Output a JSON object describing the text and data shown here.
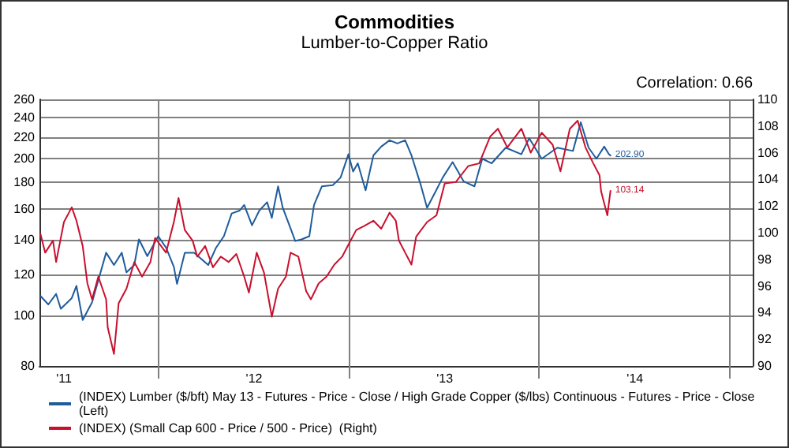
{
  "chart_data": {
    "type": "line",
    "title": "Commodities",
    "subtitle": "Lumber-to-Copper Ratio",
    "annotations": [
      "Correlation: 0.66"
    ],
    "xlim": [
      "2010-11-15",
      "2014-08-15"
    ],
    "xticks": [
      {
        "value": "2011-01-01",
        "label": "'11"
      },
      {
        "value": "2011-07-01",
        "label": null
      },
      {
        "value": "2012-01-01",
        "label": "'12"
      },
      {
        "value": "2012-07-01",
        "label": null
      },
      {
        "value": "2013-01-01",
        "label": "'13"
      },
      {
        "value": "2013-07-01",
        "label": null
      },
      {
        "value": "2014-01-01",
        "label": "'14"
      },
      {
        "value": "2014-07-01",
        "label": null
      }
    ],
    "log": "y",
    "ylim": [
      80,
      260
    ],
    "yticks": [
      80,
      100,
      120,
      140,
      160,
      180,
      200,
      220,
      240,
      260
    ],
    "y2lim": [
      90,
      110
    ],
    "y2ticks": [
      90,
      92,
      94,
      96,
      98,
      100,
      102,
      104,
      106,
      108,
      110
    ],
    "grid": true,
    "legend": "bottom",
    "marker": "none",
    "line_style": "solid",
    "series": [
      {
        "name": "(INDEX) Lumber ($/bft) May 13 - Futures - Price - Close / High Grade Copper ($/lbs) Continuous - Futures - Price - Close  (Left)",
        "color": "#1f5c9c",
        "x": [
          "2010-11-17",
          "2010-12-02",
          "2010-12-17",
          "2010-12-26",
          "2011-01-16",
          "2011-01-25",
          "2011-02-06",
          "2011-02-24",
          "2011-03-23",
          "2011-04-07",
          "2011-04-22",
          "2011-05-01",
          "2011-05-16",
          "2011-05-25",
          "2011-06-10",
          "2011-07-01",
          "2011-07-16",
          "2011-07-31",
          "2011-08-06",
          "2011-08-21",
          "2011-09-08",
          "2011-10-05",
          "2011-10-20",
          "2011-11-04",
          "2011-11-19",
          "2011-12-04",
          "2011-12-13",
          "2011-12-28",
          "2012-01-11",
          "2012-01-26",
          "2012-02-04",
          "2012-02-16",
          "2012-02-25",
          "2012-03-11",
          "2012-03-20",
          "2012-04-01",
          "2012-04-16",
          "2012-04-25",
          "2012-05-10",
          "2012-05-31",
          "2012-06-15",
          "2012-06-30",
          "2012-07-09",
          "2012-07-18",
          "2012-08-02",
          "2012-08-17",
          "2012-09-01",
          "2012-09-17",
          "2012-10-02",
          "2012-10-17",
          "2012-10-29",
          "2012-11-16",
          "2012-11-28",
          "2012-12-13",
          "2012-12-28",
          "2013-01-16",
          "2013-02-06",
          "2013-02-27",
          "2013-03-14",
          "2013-04-01",
          "2013-04-28",
          "2013-05-28",
          "2013-06-12",
          "2013-07-06",
          "2013-08-05",
          "2013-09-04",
          "2013-09-19",
          "2013-10-04",
          "2013-10-19",
          "2013-11-03",
          "2013-11-12",
          "2013-11-15"
        ],
        "values": [
          109,
          105,
          110,
          103,
          108,
          114,
          98,
          106,
          132,
          125,
          132,
          121,
          125,
          140,
          130,
          142,
          135,
          124,
          115,
          132,
          132,
          125,
          135,
          142,
          157,
          159,
          163,
          149,
          159,
          165,
          154,
          177,
          161,
          147,
          139,
          140,
          142,
          163,
          177,
          178,
          184,
          204,
          189,
          196,
          174,
          203,
          211,
          217,
          214,
          217,
          203,
          178,
          161,
          172,
          184,
          197,
          181,
          177,
          200,
          196,
          210,
          204,
          219,
          200,
          210,
          207,
          235,
          210,
          200,
          211,
          204,
          202.9
        ],
        "value_labels": [
          null,
          null,
          null,
          null,
          null,
          null,
          null,
          null,
          null,
          null,
          null,
          null,
          null,
          null,
          null,
          null,
          null,
          null,
          null,
          null,
          null,
          null,
          null,
          null,
          null,
          null,
          null,
          null,
          null,
          null,
          null,
          null,
          null,
          null,
          null,
          null,
          null,
          null,
          null,
          null,
          null,
          null,
          null,
          null,
          null,
          null,
          null,
          null,
          null,
          null,
          null,
          null,
          null,
          null,
          null,
          null,
          null,
          null,
          null,
          null,
          null,
          null,
          null,
          null,
          null,
          null,
          null,
          null,
          null,
          null,
          null,
          "202.90"
        ]
      },
      {
        "name": "(INDEX) (Small Cap 600 - Price / 500 - Price)  (Right)",
        "color": "#c8102e",
        "axis": "y2",
        "x": [
          "2010-11-17",
          "2010-11-26",
          "2010-12-11",
          "2010-12-17",
          "2011-01-01",
          "2011-01-16",
          "2011-01-25",
          "2011-02-06",
          "2011-02-15",
          "2011-02-24",
          "2011-03-08",
          "2011-03-23",
          "2011-03-26",
          "2011-04-07",
          "2011-04-16",
          "2011-05-01",
          "2011-05-16",
          "2011-05-31",
          "2011-06-16",
          "2011-06-25",
          "2011-07-16",
          "2011-07-31",
          "2011-08-09",
          "2011-08-21",
          "2011-09-05",
          "2011-09-14",
          "2011-09-29",
          "2011-10-14",
          "2011-10-29",
          "2011-11-13",
          "2011-11-28",
          "2011-12-13",
          "2011-12-22",
          "2012-01-06",
          "2012-01-20",
          "2012-02-04",
          "2012-02-16",
          "2012-03-02",
          "2012-03-11",
          "2012-03-26",
          "2012-04-10",
          "2012-04-19",
          "2012-05-04",
          "2012-05-19",
          "2012-06-03",
          "2012-06-18",
          "2012-06-30",
          "2012-07-15",
          "2012-07-30",
          "2012-08-17",
          "2012-09-01",
          "2012-09-17",
          "2012-09-29",
          "2012-10-05",
          "2012-10-17",
          "2012-10-29",
          "2012-11-07",
          "2012-11-28",
          "2012-12-16",
          "2013-01-01",
          "2013-01-22",
          "2013-02-15",
          "2013-03-08",
          "2013-03-29",
          "2013-04-13",
          "2013-05-01",
          "2013-05-28",
          "2013-06-15",
          "2013-07-06",
          "2013-07-27",
          "2013-08-11",
          "2013-08-29",
          "2013-09-13",
          "2013-09-28",
          "2013-10-13",
          "2013-10-25",
          "2013-10-28",
          "2013-11-09",
          "2013-11-15"
        ],
        "values": [
          99.9,
          98.5,
          99.4,
          97.8,
          100.8,
          101.9,
          100.9,
          99.0,
          96.2,
          95.0,
          96.7,
          95.0,
          92.9,
          90.9,
          94.7,
          95.8,
          97.8,
          96.7,
          97.8,
          99.6,
          98.5,
          100.8,
          102.6,
          100.2,
          99.4,
          98.2,
          99.0,
          97.4,
          98.2,
          97.8,
          98.4,
          96.7,
          95.5,
          98.5,
          97.0,
          93.7,
          95.8,
          96.7,
          98.5,
          98.2,
          95.6,
          95.0,
          96.2,
          96.7,
          97.6,
          98.2,
          99.1,
          100.2,
          100.5,
          100.9,
          100.3,
          101.5,
          100.9,
          99.4,
          98.5,
          97.6,
          99.7,
          100.8,
          101.3,
          103.7,
          103.8,
          105.0,
          105.2,
          107.2,
          107.8,
          106.4,
          107.8,
          106.0,
          107.5,
          106.6,
          104.6,
          107.8,
          108.4,
          106.4,
          105.2,
          104.3,
          103.1,
          101.3,
          103.14
        ],
        "value_labels": [
          null,
          null,
          null,
          null,
          null,
          null,
          null,
          null,
          null,
          null,
          null,
          null,
          null,
          null,
          null,
          null,
          null,
          null,
          null,
          null,
          null,
          null,
          null,
          null,
          null,
          null,
          null,
          null,
          null,
          null,
          null,
          null,
          null,
          null,
          null,
          null,
          null,
          null,
          null,
          null,
          null,
          null,
          null,
          null,
          null,
          null,
          null,
          null,
          null,
          null,
          null,
          null,
          null,
          null,
          null,
          null,
          null,
          null,
          null,
          null,
          null,
          null,
          null,
          null,
          null,
          null,
          null,
          null,
          null,
          null,
          null,
          null,
          null,
          null,
          null,
          null,
          null,
          null,
          "103.14"
        ]
      }
    ]
  }
}
